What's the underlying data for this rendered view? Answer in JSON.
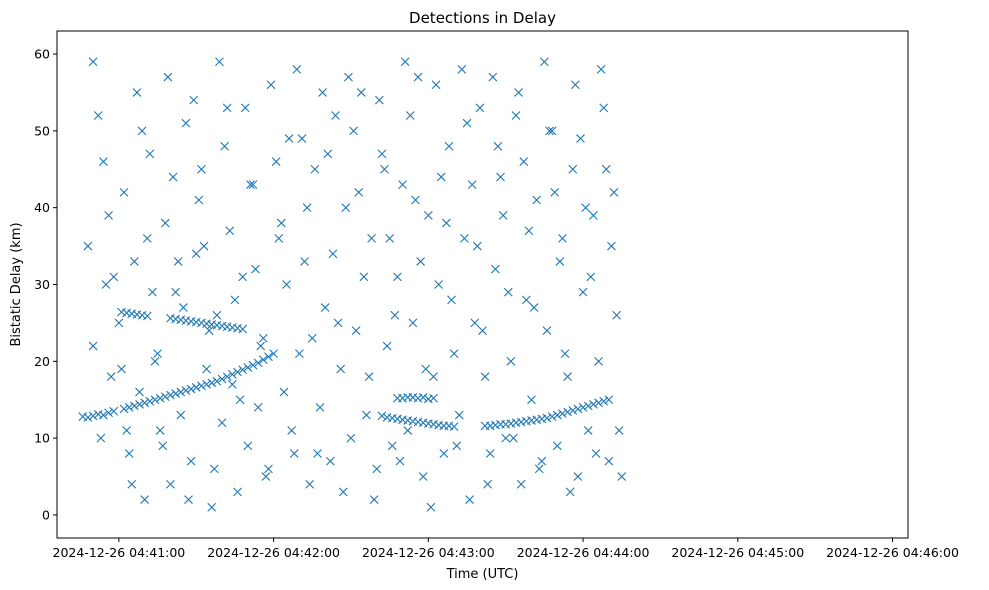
{
  "chart_data": {
    "type": "scatter",
    "title": "Detections in Delay",
    "xlabel": "Time (UTC)",
    "ylabel": "Bistatic Delay (km)",
    "marker": "x",
    "color": "#1f77b4",
    "grid": false,
    "x_is_time": true,
    "x_unit": "seconds from 2024-12-26 04:41:00",
    "xlim": [
      -24,
      306
    ],
    "ylim": [
      -3,
      63
    ],
    "x_ticks": [
      {
        "value": 0,
        "label": "2024-12-26 04:41:00"
      },
      {
        "value": 60,
        "label": "2024-12-26 04:42:00"
      },
      {
        "value": 120,
        "label": "2024-12-26 04:43:00"
      },
      {
        "value": 180,
        "label": "2024-12-26 04:44:00"
      },
      {
        "value": 240,
        "label": "2024-12-26 04:45:00"
      },
      {
        "value": 300,
        "label": "2024-12-26 04:46:00"
      }
    ],
    "y_ticks": [
      {
        "value": 0,
        "label": "0"
      },
      {
        "value": 10,
        "label": "10"
      },
      {
        "value": 20,
        "label": "20"
      },
      {
        "value": 30,
        "label": "30"
      },
      {
        "value": 40,
        "label": "40"
      },
      {
        "value": 50,
        "label": "50"
      },
      {
        "value": 60,
        "label": "60"
      }
    ],
    "series": [
      {
        "points": [
          [
            -14,
            12.8
          ],
          [
            -12,
            12.7
          ],
          [
            -10,
            12.9
          ],
          [
            -8,
            13.1
          ],
          [
            -6,
            13.0
          ],
          [
            -4,
            13.3
          ],
          [
            -2,
            13.5
          ],
          [
            2,
            13.8
          ],
          [
            4,
            14.0
          ],
          [
            6,
            14.2
          ],
          [
            8,
            14.4
          ],
          [
            10,
            14.6
          ],
          [
            12,
            14.8
          ],
          [
            14,
            15.0
          ],
          [
            16,
            15.2
          ],
          [
            18,
            15.4
          ],
          [
            20,
            15.6
          ],
          [
            22,
            15.8
          ],
          [
            24,
            16.0
          ],
          [
            26,
            16.2
          ],
          [
            28,
            16.4
          ],
          [
            30,
            16.6
          ],
          [
            32,
            16.8
          ],
          [
            34,
            17.0
          ],
          [
            36,
            17.2
          ],
          [
            38,
            17.4
          ],
          [
            40,
            17.7
          ],
          [
            42,
            18.0
          ],
          [
            44,
            18.3
          ],
          [
            46,
            18.6
          ],
          [
            48,
            18.9
          ],
          [
            50,
            19.2
          ],
          [
            52,
            19.5
          ],
          [
            54,
            19.8
          ],
          [
            56,
            20.2
          ],
          [
            58,
            20.6
          ],
          [
            60,
            21.0
          ],
          [
            20,
            25.6
          ],
          [
            22,
            25.5
          ],
          [
            24,
            25.4
          ],
          [
            26,
            25.3
          ],
          [
            28,
            25.2
          ],
          [
            30,
            25.1
          ],
          [
            32,
            25.0
          ],
          [
            34,
            24.9
          ],
          [
            36,
            24.8
          ],
          [
            38,
            24.7
          ],
          [
            40,
            24.6
          ],
          [
            42,
            24.5
          ],
          [
            44,
            24.4
          ],
          [
            46,
            24.3
          ],
          [
            48,
            24.2
          ],
          [
            1,
            26.4
          ],
          [
            3,
            26.3
          ],
          [
            5,
            26.2
          ],
          [
            7,
            26.1
          ],
          [
            9,
            26.0
          ],
          [
            11,
            25.9
          ],
          [
            108,
            15.2
          ],
          [
            110,
            15.2
          ],
          [
            112,
            15.3
          ],
          [
            114,
            15.3
          ],
          [
            116,
            15.2
          ],
          [
            118,
            15.3
          ],
          [
            120,
            15.1
          ],
          [
            122,
            15.2
          ],
          [
            102,
            12.9
          ],
          [
            104,
            12.7
          ],
          [
            106,
            12.6
          ],
          [
            108,
            12.5
          ],
          [
            110,
            12.4
          ],
          [
            112,
            12.3
          ],
          [
            114,
            12.2
          ],
          [
            116,
            12.1
          ],
          [
            118,
            12.0
          ],
          [
            120,
            11.9
          ],
          [
            122,
            11.8
          ],
          [
            124,
            11.7
          ],
          [
            126,
            11.6
          ],
          [
            128,
            11.6
          ],
          [
            130,
            11.5
          ],
          [
            142,
            11.6
          ],
          [
            144,
            11.6
          ],
          [
            146,
            11.7
          ],
          [
            148,
            11.8
          ],
          [
            150,
            11.8
          ],
          [
            152,
            11.9
          ],
          [
            154,
            12.0
          ],
          [
            156,
            12.1
          ],
          [
            158,
            12.2
          ],
          [
            160,
            12.3
          ],
          [
            162,
            12.4
          ],
          [
            164,
            12.5
          ],
          [
            166,
            12.6
          ],
          [
            168,
            12.8
          ],
          [
            170,
            13.0
          ],
          [
            172,
            13.2
          ],
          [
            174,
            13.4
          ],
          [
            176,
            13.6
          ],
          [
            178,
            13.8
          ],
          [
            180,
            14.0
          ],
          [
            182,
            14.2
          ],
          [
            184,
            14.4
          ],
          [
            186,
            14.6
          ],
          [
            188,
            14.8
          ],
          [
            190,
            15.0
          ],
          [
            -10,
            59
          ],
          [
            -8,
            52
          ],
          [
            -6,
            46
          ],
          [
            -4,
            39
          ],
          [
            -2,
            31
          ],
          [
            0,
            25
          ],
          [
            1,
            19
          ],
          [
            3,
            11
          ],
          [
            5,
            4
          ],
          [
            7,
            55
          ],
          [
            9,
            50
          ],
          [
            11,
            36
          ],
          [
            13,
            29
          ],
          [
            15,
            21
          ],
          [
            17,
            9
          ],
          [
            19,
            57
          ],
          [
            21,
            44
          ],
          [
            23,
            33
          ],
          [
            25,
            27
          ],
          [
            27,
            2
          ],
          [
            29,
            54
          ],
          [
            31,
            41
          ],
          [
            33,
            35
          ],
          [
            35,
            24
          ],
          [
            37,
            6
          ],
          [
            39,
            59
          ],
          [
            41,
            48
          ],
          [
            43,
            37
          ],
          [
            45,
            28
          ],
          [
            47,
            15
          ],
          [
            49,
            53
          ],
          [
            51,
            43
          ],
          [
            53,
            32
          ],
          [
            55,
            22
          ],
          [
            57,
            5
          ],
          [
            59,
            56
          ],
          [
            61,
            46
          ],
          [
            63,
            38
          ],
          [
            65,
            30
          ],
          [
            67,
            11
          ],
          [
            69,
            58
          ],
          [
            71,
            49
          ],
          [
            73,
            40
          ],
          [
            75,
            23
          ],
          [
            77,
            8
          ],
          [
            79,
            55
          ],
          [
            81,
            47
          ],
          [
            83,
            34
          ],
          [
            85,
            25
          ],
          [
            87,
            3
          ],
          [
            89,
            57
          ],
          [
            91,
            50
          ],
          [
            93,
            42
          ],
          [
            95,
            31
          ],
          [
            97,
            18
          ],
          [
            99,
            2
          ],
          [
            101,
            54
          ],
          [
            103,
            45
          ],
          [
            105,
            36
          ],
          [
            107,
            26
          ],
          [
            109,
            7
          ],
          [
            111,
            59
          ],
          [
            113,
            52
          ],
          [
            115,
            41
          ],
          [
            117,
            33
          ],
          [
            119,
            19
          ],
          [
            121,
            1
          ],
          [
            123,
            56
          ],
          [
            125,
            44
          ],
          [
            127,
            38
          ],
          [
            129,
            28
          ],
          [
            131,
            9
          ],
          [
            133,
            58
          ],
          [
            135,
            51
          ],
          [
            137,
            43
          ],
          [
            139,
            35
          ],
          [
            141,
            24
          ],
          [
            143,
            4
          ],
          [
            145,
            57
          ],
          [
            147,
            48
          ],
          [
            149,
            39
          ],
          [
            151,
            29
          ],
          [
            153,
            10
          ],
          [
            155,
            55
          ],
          [
            157,
            46
          ],
          [
            159,
            37
          ],
          [
            161,
            27
          ],
          [
            163,
            6
          ],
          [
            165,
            59
          ],
          [
            167,
            50
          ],
          [
            169,
            42
          ],
          [
            171,
            33
          ],
          [
            173,
            21
          ],
          [
            175,
            3
          ],
          [
            177,
            56
          ],
          [
            179,
            49
          ],
          [
            181,
            40
          ],
          [
            183,
            31
          ],
          [
            185,
            8
          ],
          [
            187,
            58
          ],
          [
            189,
            45
          ],
          [
            191,
            35
          ],
          [
            193,
            26
          ],
          [
            195,
            5
          ],
          [
            -12,
            35
          ],
          [
            -10,
            22
          ],
          [
            -7,
            10
          ],
          [
            -5,
            30
          ],
          [
            -3,
            18
          ],
          [
            2,
            42
          ],
          [
            4,
            8
          ],
          [
            6,
            33
          ],
          [
            8,
            16
          ],
          [
            10,
            2
          ],
          [
            12,
            47
          ],
          [
            14,
            20
          ],
          [
            16,
            11
          ],
          [
            18,
            38
          ],
          [
            20,
            4
          ],
          [
            22,
            29
          ],
          [
            24,
            13
          ],
          [
            26,
            51
          ],
          [
            28,
            7
          ],
          [
            30,
            34
          ],
          [
            32,
            45
          ],
          [
            34,
            19
          ],
          [
            36,
            1
          ],
          [
            38,
            26
          ],
          [
            40,
            12
          ],
          [
            42,
            53
          ],
          [
            44,
            17
          ],
          [
            46,
            3
          ],
          [
            48,
            31
          ],
          [
            50,
            9
          ],
          [
            52,
            43
          ],
          [
            54,
            14
          ],
          [
            56,
            23
          ],
          [
            58,
            6
          ],
          [
            62,
            36
          ],
          [
            64,
            16
          ],
          [
            66,
            49
          ],
          [
            68,
            8
          ],
          [
            70,
            21
          ],
          [
            72,
            33
          ],
          [
            74,
            4
          ],
          [
            76,
            45
          ],
          [
            78,
            14
          ],
          [
            80,
            27
          ],
          [
            82,
            7
          ],
          [
            84,
            52
          ],
          [
            86,
            19
          ],
          [
            88,
            40
          ],
          [
            90,
            10
          ],
          [
            92,
            24
          ],
          [
            94,
            55
          ],
          [
            96,
            13
          ],
          [
            98,
            36
          ],
          [
            100,
            6
          ],
          [
            102,
            47
          ],
          [
            104,
            22
          ],
          [
            106,
            9
          ],
          [
            108,
            31
          ],
          [
            110,
            43
          ],
          [
            112,
            11
          ],
          [
            114,
            25
          ],
          [
            116,
            57
          ],
          [
            118,
            5
          ],
          [
            120,
            39
          ],
          [
            122,
            18
          ],
          [
            124,
            30
          ],
          [
            126,
            8
          ],
          [
            128,
            48
          ],
          [
            130,
            21
          ],
          [
            132,
            13
          ],
          [
            134,
            36
          ],
          [
            136,
            2
          ],
          [
            138,
            25
          ],
          [
            140,
            53
          ],
          [
            142,
            18
          ],
          [
            144,
            8
          ],
          [
            146,
            32
          ],
          [
            148,
            44
          ],
          [
            150,
            10
          ],
          [
            152,
            20
          ],
          [
            154,
            52
          ],
          [
            156,
            4
          ],
          [
            158,
            28
          ],
          [
            160,
            15
          ],
          [
            162,
            41
          ],
          [
            164,
            7
          ],
          [
            166,
            24
          ],
          [
            168,
            50
          ],
          [
            170,
            9
          ],
          [
            172,
            36
          ],
          [
            174,
            18
          ],
          [
            176,
            45
          ],
          [
            178,
            5
          ],
          [
            180,
            29
          ],
          [
            182,
            11
          ],
          [
            184,
            39
          ],
          [
            186,
            20
          ],
          [
            188,
            53
          ],
          [
            190,
            7
          ],
          [
            192,
            42
          ],
          [
            194,
            11
          ]
        ]
      }
    ]
  }
}
